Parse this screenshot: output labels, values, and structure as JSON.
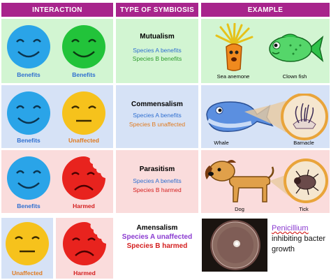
{
  "headers": {
    "interaction": "INTERACTION",
    "type": "TYPE OF SYMBIOSIS",
    "example": "EXAMPLE"
  },
  "colors": {
    "header": "#a8248c",
    "blue_text": "#2f6fd0",
    "green_text": "#2e9a2e",
    "orange_text": "#e07a1f",
    "red_text": "#d42020",
    "purple_text": "#8a3ad0"
  },
  "rows": [
    {
      "faces": [
        {
          "label": "Benefits",
          "expr": "happy",
          "color": "blue"
        },
        {
          "label": "Benefits",
          "expr": "happy",
          "color": "green"
        }
      ],
      "symbiosis": {
        "title": "Mutualism",
        "line_a": "Species A benefits",
        "line_b": "Species B benefits"
      },
      "example": {
        "left": "Sea anemone",
        "right": "Clown fish"
      }
    },
    {
      "faces": [
        {
          "label": "Benefits",
          "expr": "happy",
          "color": "blue"
        },
        {
          "label": "Unaffected",
          "expr": "neutral",
          "color": "yellow"
        }
      ],
      "symbiosis": {
        "title": "Commensalism",
        "line_a": "Species A benefits",
        "line_b": "Species B unaffected"
      },
      "example": {
        "left": "Whale",
        "right": "Barnacle"
      }
    },
    {
      "faces": [
        {
          "label": "Benefits",
          "expr": "happy",
          "color": "blue"
        },
        {
          "label": "Harmed",
          "expr": "sad",
          "color": "red"
        }
      ],
      "symbiosis": {
        "title": "Parasitism",
        "line_a": "Species A benefits",
        "line_b": "Species B harmed"
      },
      "example": {
        "left": "Dog",
        "right": "Tick"
      }
    },
    {
      "faces": [
        {
          "label": "Unaffected",
          "expr": "neutral",
          "color": "yellow"
        },
        {
          "label": "Harmed",
          "expr": "sad",
          "color": "red"
        }
      ],
      "symbiosis": {
        "title": "Amensalism",
        "line_a": "Species A unaffected",
        "line_b": "Species B harmed"
      },
      "example": {
        "title": "Penicillium",
        "line1": "inhibiting bacter",
        "line2": "growth"
      }
    }
  ]
}
